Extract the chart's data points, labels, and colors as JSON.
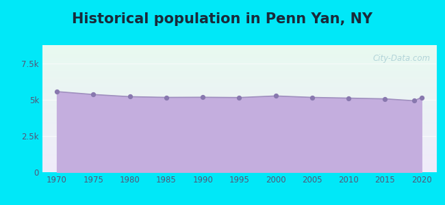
{
  "title": "Historical population in Penn Yan, NY",
  "years": [
    1970,
    1975,
    1980,
    1985,
    1990,
    1995,
    2000,
    2005,
    2010,
    2015,
    2019,
    2020
  ],
  "population": [
    5550,
    5350,
    5200,
    5150,
    5160,
    5140,
    5250,
    5150,
    5100,
    5050,
    4920,
    5150
  ],
  "line_color": "#9f8fbe",
  "fill_color": "#c4aede",
  "marker_color": "#8878ae",
  "fill_alpha": 1.0,
  "background_outer": "#00e8f8",
  "bg_grad_top": "#e8faf0",
  "bg_grad_bottom": "#f0ebfa",
  "ylim": [
    0,
    8750
  ],
  "xlim": [
    1968,
    2022
  ],
  "yticks": [
    0,
    2500,
    5000,
    7500
  ],
  "ytick_labels": [
    "0",
    "2.5k",
    "5k",
    "7.5k"
  ],
  "xticks": [
    1970,
    1975,
    1980,
    1985,
    1990,
    1995,
    2000,
    2005,
    2010,
    2015,
    2020
  ],
  "title_fontsize": 15,
  "title_color": "#1a2a3a",
  "tick_color": "#555577",
  "watermark": "City-Data.com",
  "watermark_color": "#a0c8d0"
}
